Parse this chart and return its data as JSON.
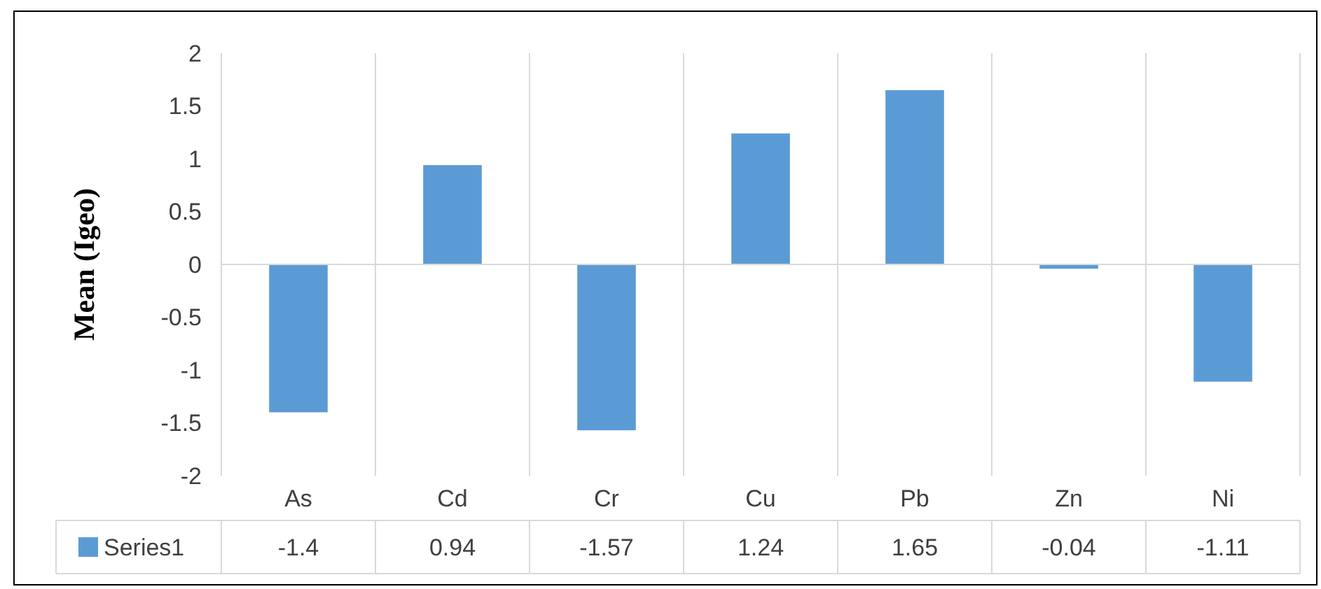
{
  "chart_data": {
    "type": "bar",
    "ylabel": "Mean (Igeo)",
    "categories": [
      "As",
      "Cd",
      "Cr",
      "Cu",
      "Pb",
      "Zn",
      "Ni"
    ],
    "series": [
      {
        "name": "Series1",
        "color": "#5b9bd5",
        "values": [
          -1.4,
          0.94,
          -1.57,
          1.24,
          1.65,
          -0.04,
          -1.11
        ]
      }
    ],
    "ylim": [
      -2,
      2
    ],
    "yticks": [
      -2,
      -1.5,
      -1,
      -0.5,
      0,
      0.5,
      1,
      1.5,
      2
    ],
    "data_labels": true,
    "legend": "bottom"
  }
}
